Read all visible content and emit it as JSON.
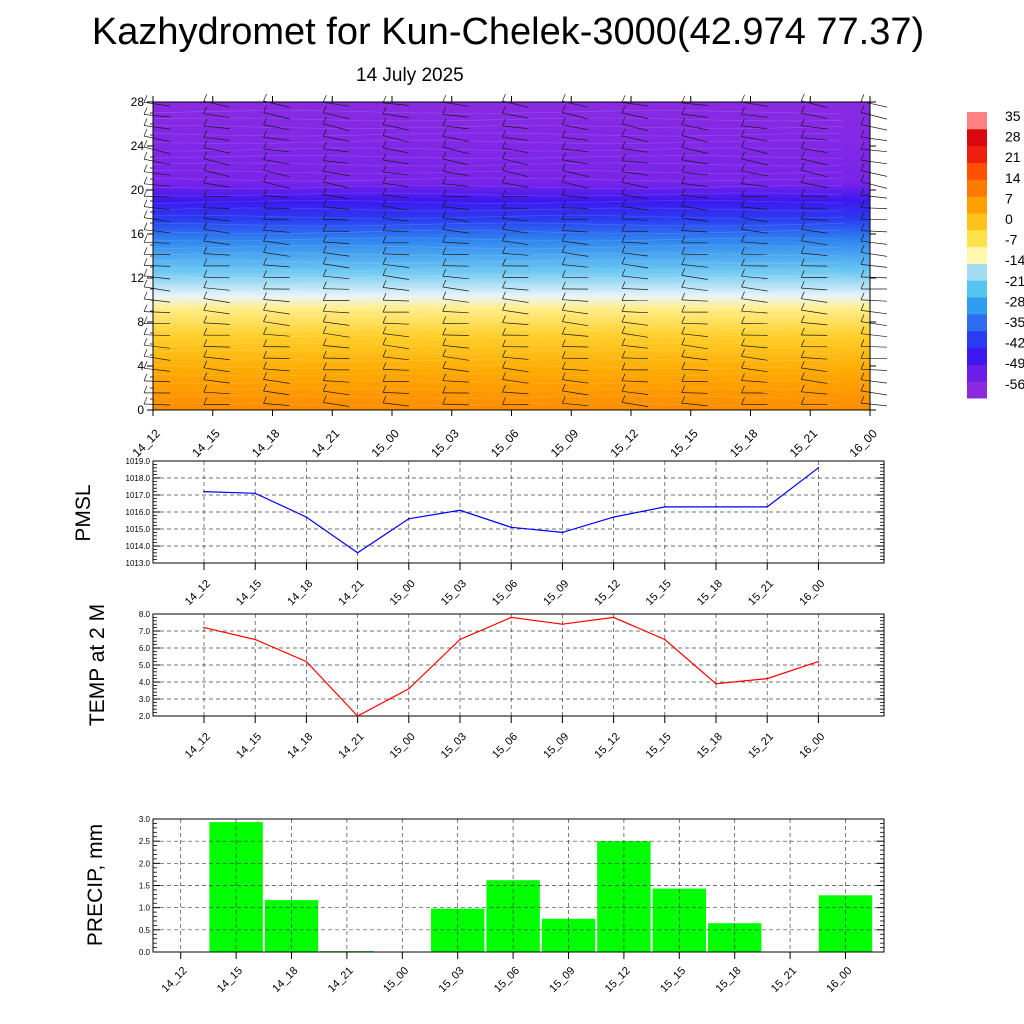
{
  "title": "Kazhydromet for Kun-Chelek-3000(42.974 77.37)",
  "subtitle": "14 July 2025",
  "colors": {
    "pmsl_line": "#0000ff",
    "temp_line": "#ff0000",
    "precip_bar": "#00ff00",
    "grid": "#000000",
    "colorbar": [
      "#8a2be2",
      "#6a1fe8",
      "#3d18ef",
      "#2a3cf2",
      "#2f6df0",
      "#2f9df1",
      "#55c5f2",
      "#a3dcf0",
      "#fff6b0",
      "#ffe24a",
      "#ffc21a",
      "#ff9f00",
      "#ff7a00",
      "#ff4f00",
      "#f01e10",
      "#d80a10",
      "#ff8080"
    ]
  },
  "chart_data": [
    {
      "type": "heatmap",
      "title": "",
      "xlabel": "",
      "ylabel": "",
      "categories": [
        "14_12",
        "14_15",
        "14_18",
        "14_21",
        "15_00",
        "15_03",
        "15_06",
        "15_09",
        "15_12",
        "15_15",
        "15_18",
        "15_21",
        "16_00"
      ],
      "y_ticks": [
        "0",
        "4",
        "8",
        "12",
        "16",
        "20",
        "24",
        "28"
      ],
      "ylim": [
        0,
        28
      ],
      "colorbar_labels": [
        "35",
        "28",
        "21",
        "14",
        "7",
        "0",
        "-7",
        "-14",
        "-21",
        "-28",
        "-35",
        "-42",
        "-49",
        "-56"
      ],
      "overlay": "wind barbs"
    },
    {
      "type": "line",
      "title": "",
      "ylabel": "PMSL",
      "xlabel": "",
      "categories": [
        "14_12",
        "14_15",
        "14_18",
        "14_21",
        "15_00",
        "15_03",
        "15_06",
        "15_09",
        "15_12",
        "15_15",
        "15_18",
        "15_21",
        "16_00"
      ],
      "values": [
        1017.2,
        1017.1,
        1015.7,
        1013.6,
        1015.6,
        1016.1,
        1015.1,
        1014.8,
        1015.7,
        1016.3,
        1016.3,
        1016.3,
        1018.6
      ],
      "ylim": [
        1013.0,
        1019.0
      ],
      "y_ticks": [
        "1013.0",
        "1014.0",
        "1015.0",
        "1016.0",
        "1017.0",
        "1018.0",
        "1019.0"
      ],
      "grid": true
    },
    {
      "type": "line",
      "title": "",
      "ylabel": "TEMP at 2 M",
      "xlabel": "",
      "categories": [
        "14_12",
        "14_15",
        "14_18",
        "14_21",
        "15_00",
        "15_03",
        "15_06",
        "15_09",
        "15_12",
        "15_15",
        "15_18",
        "15_21",
        "16_00"
      ],
      "values": [
        7.2,
        6.5,
        5.2,
        2.0,
        3.6,
        6.5,
        7.8,
        7.4,
        7.8,
        6.5,
        3.9,
        4.2,
        5.2
      ],
      "ylim": [
        2.0,
        8.0
      ],
      "y_ticks": [
        "2.0",
        "3.0",
        "4.0",
        "5.0",
        "6.0",
        "7.0",
        "8.0"
      ],
      "grid": true
    },
    {
      "type": "bar",
      "title": "",
      "ylabel": "PRECIP, mm",
      "xlabel": "",
      "categories": [
        "14_12",
        "14_15",
        "14_18",
        "14_21",
        "15_00",
        "15_03",
        "15_06",
        "15_09",
        "15_12",
        "15_15",
        "15_18",
        "15_21",
        "16_00"
      ],
      "values": [
        0.0,
        2.93,
        1.17,
        0.02,
        0.0,
        0.98,
        1.62,
        0.75,
        2.5,
        1.43,
        0.65,
        0.0,
        1.28
      ],
      "ylim": [
        0.0,
        3.0
      ],
      "y_ticks": [
        "0.0",
        "0.5",
        "1.0",
        "1.5",
        "2.0",
        "2.5",
        "3.0"
      ],
      "grid": true
    }
  ]
}
